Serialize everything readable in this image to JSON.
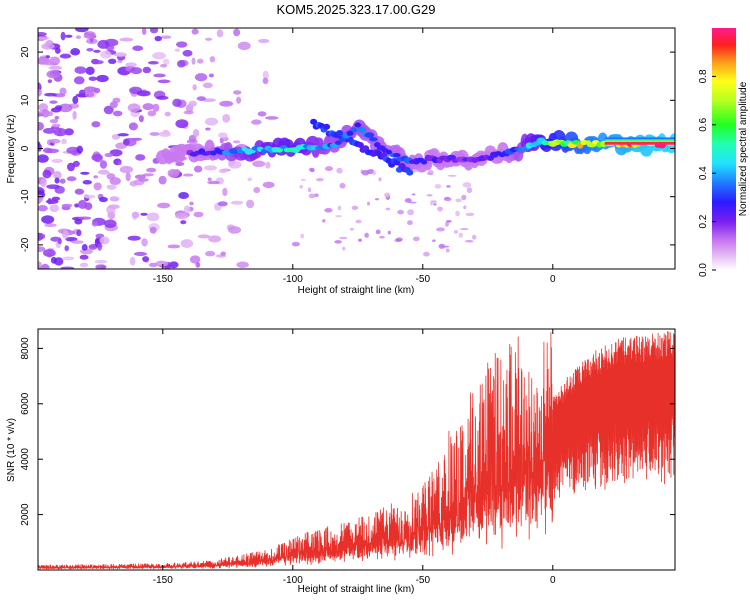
{
  "title": "KOM5.2025.323.17.00.G29",
  "chart_data": [
    {
      "type": "heatmap",
      "xlabel": "Height of straight line (km)",
      "ylabel": "Frequency (Hz)",
      "xlim": [
        -198,
        47
      ],
      "ylim": [
        -25,
        25
      ],
      "xticks": [
        -150,
        -100,
        -50,
        0
      ],
      "yticks": [
        -20,
        -10,
        0,
        10,
        20
      ],
      "colorbar": {
        "label": "Normalized spectral amplitude",
        "range": [
          0,
          1
        ],
        "ticks": [
          "0.0",
          "0.2",
          "0.4",
          "0.6",
          "0.8"
        ],
        "tick_values": [
          0,
          0.2,
          0.4,
          0.6,
          0.8
        ]
      },
      "ridge": {
        "description_points": [
          {
            "x": -145,
            "y": -1,
            "z": 0.15
          },
          {
            "x": -120,
            "y": -0.5,
            "z": 0.4
          },
          {
            "x": -100,
            "y": 0,
            "z": 0.5
          },
          {
            "x": -85,
            "y": 0.5,
            "z": 0.35
          },
          {
            "x": -75,
            "y": 4.5,
            "z": 0.35
          },
          {
            "x": -65,
            "y": 0,
            "z": 0.3
          },
          {
            "x": -55,
            "y": -3,
            "z": 0.3
          },
          {
            "x": -45,
            "y": -2,
            "z": 0.25
          },
          {
            "x": -30,
            "y": -2.5,
            "z": 0.2
          },
          {
            "x": -15,
            "y": -0.5,
            "z": 0.3
          },
          {
            "x": -5,
            "y": 1.5,
            "z": 0.55
          },
          {
            "x": 5,
            "y": 1,
            "z": 0.7
          },
          {
            "x": 20,
            "y": 1,
            "z": 0.85
          },
          {
            "x": 40,
            "y": 1,
            "z": 0.95
          }
        ]
      }
    },
    {
      "type": "line",
      "xlabel": "Height of straight line (km)",
      "ylabel": "SNR (10 * v/v)",
      "xlim": [
        -198,
        47
      ],
      "ylim": [
        0,
        8700
      ],
      "xticks": [
        -150,
        -100,
        -50,
        0
      ],
      "yticks": [
        2000,
        4000,
        6000,
        8000
      ],
      "color": "#e8302a",
      "series": [
        {
          "envelope": [
            {
              "x": -198,
              "y": 150
            },
            {
              "x": -150,
              "y": 200
            },
            {
              "x": -130,
              "y": 300
            },
            {
              "x": -110,
              "y": 600
            },
            {
              "x": -95,
              "y": 1100
            },
            {
              "x": -80,
              "y": 1400
            },
            {
              "x": -60,
              "y": 2000
            },
            {
              "x": -45,
              "y": 3000
            },
            {
              "x": -35,
              "y": 4300
            },
            {
              "x": -25,
              "y": 5500
            },
            {
              "x": -15,
              "y": 6200
            },
            {
              "x": -5,
              "y": 5800
            },
            {
              "x": 5,
              "y": 6800
            },
            {
              "x": 15,
              "y": 7700
            },
            {
              "x": 25,
              "y": 8200
            },
            {
              "x": 47,
              "y": 8500
            }
          ]
        }
      ]
    }
  ]
}
